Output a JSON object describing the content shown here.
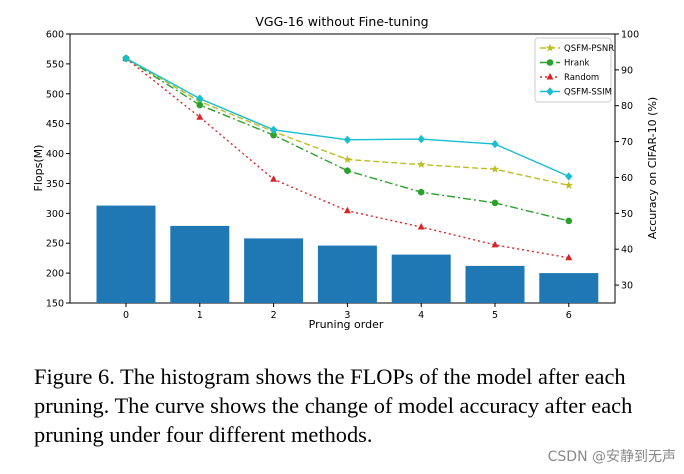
{
  "chart_data": {
    "type": "bar+line",
    "title": "VGG-16 without Fine-tuning",
    "xlabel": "Pruning order",
    "ylabel_left": "Flops(M)",
    "ylabel_right": "Accuracy on CIFAR-10 (%)",
    "categories": [
      "0",
      "1",
      "2",
      "3",
      "4",
      "5",
      "6"
    ],
    "bar_series": {
      "name": "FLOPs",
      "values": [
        313,
        279,
        258,
        246,
        231,
        212,
        200
      ],
      "color": "#1f77b4"
    },
    "ylim_left": [
      150,
      600
    ],
    "yticks_left": [
      "150",
      "200",
      "250",
      "300",
      "350",
      "400",
      "450",
      "500",
      "550",
      "600"
    ],
    "ylim_right": [
      25,
      100
    ],
    "yticks_right": [
      "30",
      "40",
      "50",
      "60",
      "70",
      "80",
      "90",
      "100"
    ],
    "line_series": [
      {
        "name": "QSFM-PSNR",
        "values": [
          93.2,
          81.2,
          72.8,
          65.0,
          63.6,
          62.3,
          57.8
        ],
        "color": "#bcbd22",
        "dash": "6,3",
        "marker": "star"
      },
      {
        "name": "Hrank",
        "values": [
          93.2,
          80.2,
          71.8,
          61.9,
          55.9,
          52.9,
          47.9
        ],
        "color": "#2ca02c",
        "dash": "8,3,2,3",
        "marker": "circle"
      },
      {
        "name": "Random",
        "values": [
          93.2,
          76.8,
          59.5,
          50.7,
          46.2,
          41.2,
          37.6
        ],
        "color": "#d62728",
        "dash": "2,3",
        "marker": "triangle"
      },
      {
        "name": "QSFM-SSIM",
        "values": [
          93.2,
          82.0,
          73.3,
          70.5,
          70.7,
          69.3,
          60.3
        ],
        "color": "#17becf",
        "dash": "",
        "marker": "diamond"
      }
    ],
    "legend_position": "top-right"
  },
  "caption": "Figure 6. The histogram shows the FLOPs of the model after each pruning. The curve shows the change of model accuracy after each pruning under four different methods.",
  "watermark": "CSDN @安静到无声"
}
